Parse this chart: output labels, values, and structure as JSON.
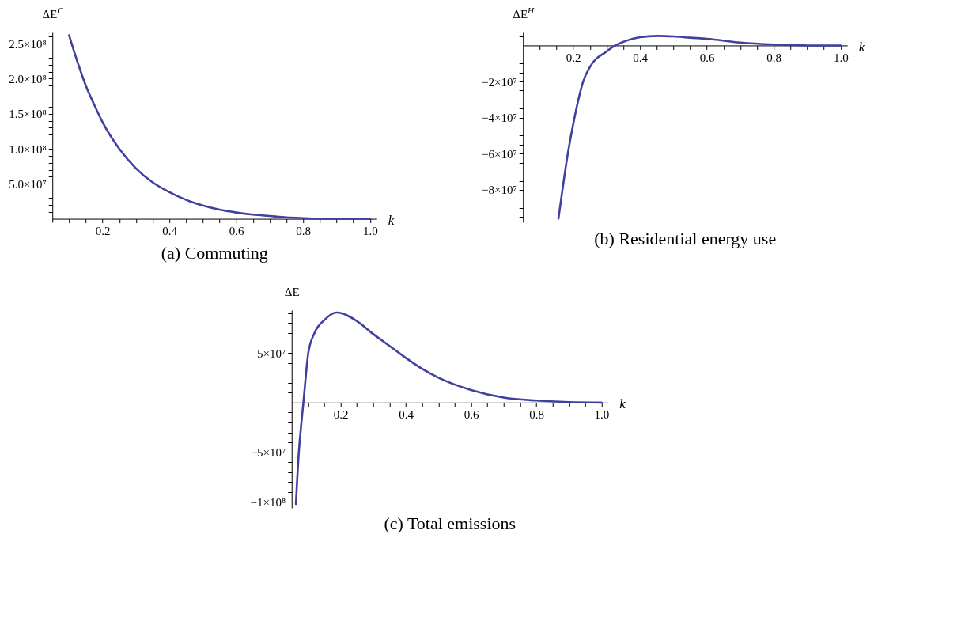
{
  "chart_data": [
    {
      "type": "line",
      "title": "(a) Commuting",
      "xlabel": "k",
      "ylabel": "ΔE$^{C}$",
      "grid": false,
      "marker": "none",
      "line_style": "solid",
      "x": [
        0.1,
        0.125,
        0.15,
        0.175,
        0.2,
        0.25,
        0.3,
        0.35,
        0.4,
        0.45,
        0.5,
        0.55,
        0.6,
        0.65,
        0.7,
        0.75,
        0.8,
        0.9,
        1.0
      ],
      "series": [
        {
          "color": "#40409f",
          "values": [
            262000000,
            224000000,
            190000000,
            163000000,
            138000000,
            100000000,
            72000000,
            52000000,
            38000000,
            27000000,
            19000000,
            13000000,
            9000000,
            6000000,
            4000000,
            2000000,
            1000000,
            0,
            0
          ]
        }
      ],
      "xlim": [
        0.05,
        1.02
      ],
      "ylim": [
        -5000000,
        266000000
      ],
      "xticks": [
        {
          "value": 0.1,
          "label": null
        },
        {
          "value": 0.15,
          "label": null
        },
        0.2,
        {
          "value": 0.25,
          "label": null
        },
        {
          "value": 0.3,
          "label": null
        },
        {
          "value": 0.35,
          "label": null
        },
        0.4,
        {
          "value": 0.45,
          "label": null
        },
        {
          "value": 0.5,
          "label": null
        },
        {
          "value": 0.55,
          "label": null
        },
        0.6,
        {
          "value": 0.65,
          "label": null
        },
        {
          "value": 0.7,
          "label": null
        },
        {
          "value": 0.75,
          "label": null
        },
        0.8,
        {
          "value": 0.85,
          "label": null
        },
        {
          "value": 0.9,
          "label": null
        },
        {
          "value": 0.95,
          "label": null
        },
        {
          "value": 1.0,
          "label": "1.0"
        }
      ],
      "yticks": [
        {
          "value": 10000000,
          "label": null
        },
        {
          "value": 20000000,
          "label": null
        },
        {
          "value": 30000000,
          "label": null
        },
        {
          "value": 40000000,
          "label": null
        },
        {
          "value": 50000000,
          "label": "5.0×10⁷"
        },
        {
          "value": 60000000,
          "label": null
        },
        {
          "value": 70000000,
          "label": null
        },
        {
          "value": 80000000,
          "label": null
        },
        {
          "value": 90000000,
          "label": null
        },
        {
          "value": 100000000,
          "label": "1.0×10⁸"
        },
        {
          "value": 110000000,
          "label": null
        },
        {
          "value": 120000000,
          "label": null
        },
        {
          "value": 130000000,
          "label": null
        },
        {
          "value": 140000000,
          "label": null
        },
        {
          "value": 150000000,
          "label": "1.5×10⁸"
        },
        {
          "value": 160000000,
          "label": null
        },
        {
          "value": 170000000,
          "label": null
        },
        {
          "value": 180000000,
          "label": null
        },
        {
          "value": 190000000,
          "label": null
        },
        {
          "value": 200000000,
          "label": "2.0×10⁸"
        },
        {
          "value": 210000000,
          "label": null
        },
        {
          "value": 220000000,
          "label": null
        },
        {
          "value": 230000000,
          "label": null
        },
        {
          "value": 240000000,
          "label": null
        },
        {
          "value": 250000000,
          "label": "2.5×10⁸"
        },
        {
          "value": 260000000,
          "label": null
        }
      ]
    },
    {
      "type": "line",
      "title": "(b) Residential energy use",
      "xlabel": "k",
      "ylabel": "ΔE$^{H}$",
      "grid": false,
      "marker": "none",
      "line_style": "solid",
      "x": [
        0.156,
        0.168,
        0.184,
        0.204,
        0.23,
        0.25,
        0.3,
        0.326,
        0.35,
        0.4,
        0.452,
        0.5,
        0.55,
        0.6,
        0.7,
        0.8,
        0.9,
        1.0
      ],
      "series": [
        {
          "color": "#40409f",
          "values": [
            -96000000,
            -80000000,
            -60000000,
            -40000000,
            -20000000,
            -12000000,
            -3300000,
            0,
            2000000,
            4600000,
            5300000,
            5000000,
            4300000,
            3700000,
            1600000,
            500000,
            0,
            0
          ]
        }
      ],
      "xlim": [
        0.05,
        1.02
      ],
      "ylim": [
        -98000000,
        7200000
      ],
      "xticks": [
        {
          "value": 0.1,
          "label": null
        },
        {
          "value": 0.15,
          "label": null
        },
        0.2,
        {
          "value": 0.25,
          "label": null
        },
        {
          "value": 0.3,
          "label": null
        },
        {
          "value": 0.35,
          "label": null
        },
        0.4,
        {
          "value": 0.45,
          "label": null
        },
        {
          "value": 0.5,
          "label": null
        },
        {
          "value": 0.55,
          "label": null
        },
        0.6,
        {
          "value": 0.65,
          "label": null
        },
        {
          "value": 0.7,
          "label": null
        },
        {
          "value": 0.75,
          "label": null
        },
        0.8,
        {
          "value": 0.85,
          "label": null
        },
        {
          "value": 0.9,
          "label": null
        },
        {
          "value": 0.95,
          "label": null
        },
        {
          "value": 1.0,
          "label": "1.0"
        }
      ],
      "yticks": [
        {
          "value": 5000000,
          "label": null
        },
        {
          "value": -5000000,
          "label": null
        },
        {
          "value": -10000000,
          "label": null
        },
        {
          "value": -15000000,
          "label": null
        },
        {
          "value": -20000000,
          "label": "−2×10⁷"
        },
        {
          "value": -25000000,
          "label": null
        },
        {
          "value": -30000000,
          "label": null
        },
        {
          "value": -35000000,
          "label": null
        },
        {
          "value": -40000000,
          "label": "−4×10⁷"
        },
        {
          "value": -45000000,
          "label": null
        },
        {
          "value": -50000000,
          "label": null
        },
        {
          "value": -55000000,
          "label": null
        },
        {
          "value": -60000000,
          "label": "−6×10⁷"
        },
        {
          "value": -65000000,
          "label": null
        },
        {
          "value": -70000000,
          "label": null
        },
        {
          "value": -75000000,
          "label": null
        },
        {
          "value": -80000000,
          "label": "−8×10⁷"
        },
        {
          "value": -85000000,
          "label": null
        },
        {
          "value": -90000000,
          "label": null
        },
        {
          "value": -95000000,
          "label": null
        }
      ]
    },
    {
      "type": "line",
      "title": "(c) Total emissions",
      "xlabel": "k",
      "ylabel": "ΔE",
      "grid": false,
      "marker": "none",
      "line_style": "solid",
      "x": [
        0.063,
        0.072,
        0.08,
        0.086,
        0.101,
        0.12,
        0.15,
        0.188,
        0.25,
        0.3,
        0.35,
        0.4,
        0.45,
        0.5,
        0.6,
        0.7,
        0.8,
        0.9,
        1.0
      ],
      "series": [
        {
          "color": "#40409f",
          "values": [
            -102000000,
            -50000000,
            -20000000,
            0,
            50000000,
            70000000,
            83000000,
            90600000,
            82000000,
            69000000,
            57000000,
            45000000,
            34000000,
            25000000,
            12600000,
            5000000,
            2000000,
            500000,
            0
          ]
        }
      ],
      "xlim": [
        0.05,
        1.02
      ],
      "ylim": [
        -106000000,
        93000000
      ],
      "xticks": [
        {
          "value": 0.1,
          "label": null
        },
        {
          "value": 0.15,
          "label": null
        },
        0.2,
        {
          "value": 0.25,
          "label": null
        },
        {
          "value": 0.3,
          "label": null
        },
        {
          "value": 0.35,
          "label": null
        },
        0.4,
        {
          "value": 0.45,
          "label": null
        },
        {
          "value": 0.5,
          "label": null
        },
        {
          "value": 0.55,
          "label": null
        },
        0.6,
        {
          "value": 0.65,
          "label": null
        },
        {
          "value": 0.7,
          "label": null
        },
        {
          "value": 0.75,
          "label": null
        },
        0.8,
        {
          "value": 0.85,
          "label": null
        },
        {
          "value": 0.9,
          "label": null
        },
        {
          "value": 0.95,
          "label": null
        },
        {
          "value": 1.0,
          "label": "1.0"
        }
      ],
      "yticks": [
        {
          "value": 90000000,
          "label": null
        },
        {
          "value": 80000000,
          "label": null
        },
        {
          "value": 70000000,
          "label": null
        },
        {
          "value": 60000000,
          "label": null
        },
        {
          "value": 50000000,
          "label": "5×10⁷"
        },
        {
          "value": 40000000,
          "label": null
        },
        {
          "value": 30000000,
          "label": null
        },
        {
          "value": 20000000,
          "label": null
        },
        {
          "value": 10000000,
          "label": null
        },
        {
          "value": -10000000,
          "label": null
        },
        {
          "value": -20000000,
          "label": null
        },
        {
          "value": -30000000,
          "label": null
        },
        {
          "value": -40000000,
          "label": null
        },
        {
          "value": -50000000,
          "label": "−5×10⁷"
        },
        {
          "value": -60000000,
          "label": null
        },
        {
          "value": -70000000,
          "label": null
        },
        {
          "value": -80000000,
          "label": null
        },
        {
          "value": -90000000,
          "label": null
        },
        {
          "value": -100000000,
          "label": "−1×10⁸"
        }
      ]
    }
  ]
}
